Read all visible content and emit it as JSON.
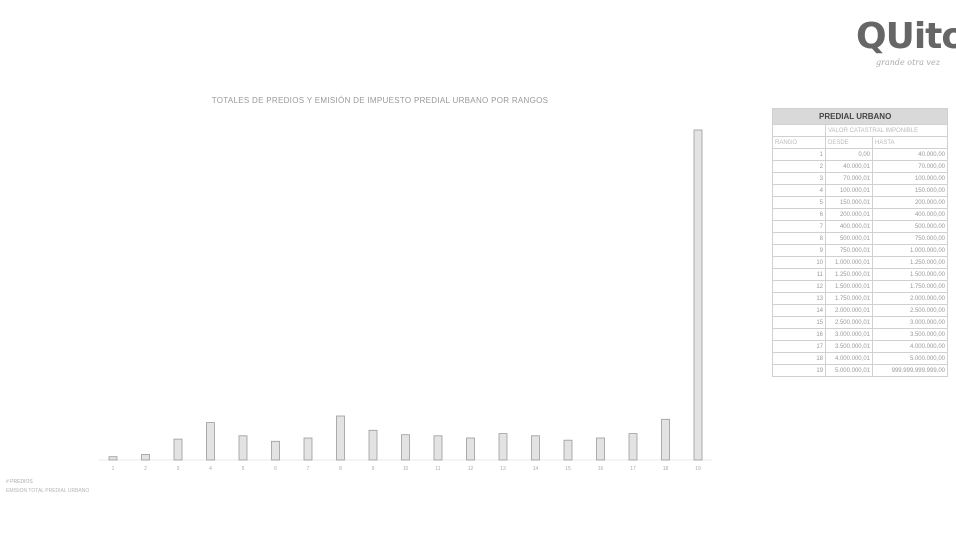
{
  "logo": {
    "word": "QUito",
    "tagline": "grande otra vez"
  },
  "chart_data": {
    "type": "bar",
    "title": "TOTALES DE PREDIOS Y EMISIÓN DE IMPUESTO PREDIAL URBANO POR RANGOS",
    "categories": [
      "1",
      "2",
      "3",
      "4",
      "5",
      "6",
      "7",
      "8",
      "9",
      "10",
      "11",
      "12",
      "13",
      "14",
      "15",
      "16",
      "17",
      "18",
      "19"
    ],
    "values": [
      3000,
      5000,
      19000,
      34000,
      22000,
      17000,
      20000,
      40000,
      27000,
      23000,
      22000,
      20000,
      24000,
      22000,
      18000,
      20000,
      24000,
      37000,
      300000
    ],
    "ylim": [
      0,
      300000
    ],
    "xlabel": "",
    "ylabel": "",
    "bar_color": "#e3e3e3",
    "bar_edge_color": "#9a9a9a",
    "grid": false,
    "legend": "none",
    "row_label_1": "# PREDIOS",
    "row_label_2": "EMISIÓN TOTAL PREDIAL URBANO"
  },
  "table": {
    "title": "PREDIAL URBANO",
    "group_header": "VALOR CATASTRAL IMPONIBLE",
    "columns": [
      "RANGO",
      "DESDE",
      "HASTA"
    ],
    "rows": [
      [
        "1",
        "0,00",
        "40.000,00"
      ],
      [
        "2",
        "40.000,01",
        "70.000,00"
      ],
      [
        "3",
        "70.000,01",
        "100.000,00"
      ],
      [
        "4",
        "100.000,01",
        "150.000,00"
      ],
      [
        "5",
        "150.000,01",
        "200.000,00"
      ],
      [
        "6",
        "200.000,01",
        "400.000,00"
      ],
      [
        "7",
        "400.000,01",
        "500.000,00"
      ],
      [
        "8",
        "500.000,01",
        "750.000,00"
      ],
      [
        "9",
        "750.000,01",
        "1.000.000,00"
      ],
      [
        "10",
        "1.000.000,01",
        "1.250.000,00"
      ],
      [
        "11",
        "1.250.000,01",
        "1.500.000,00"
      ],
      [
        "12",
        "1.500.000,01",
        "1.750.000,00"
      ],
      [
        "13",
        "1.750.000,01",
        "2.000.000,00"
      ],
      [
        "14",
        "2.000.000,01",
        "2.500.000,00"
      ],
      [
        "15",
        "2.500.000,01",
        "3.000.000,00"
      ],
      [
        "16",
        "3.000.000,01",
        "3.500.000,00"
      ],
      [
        "17",
        "3.500.000,01",
        "4.000.000,00"
      ],
      [
        "18",
        "4.000.000,01",
        "5.000.000,00"
      ],
      [
        "19",
        "5.000.000,01",
        "999.999.999.999,00"
      ]
    ]
  }
}
